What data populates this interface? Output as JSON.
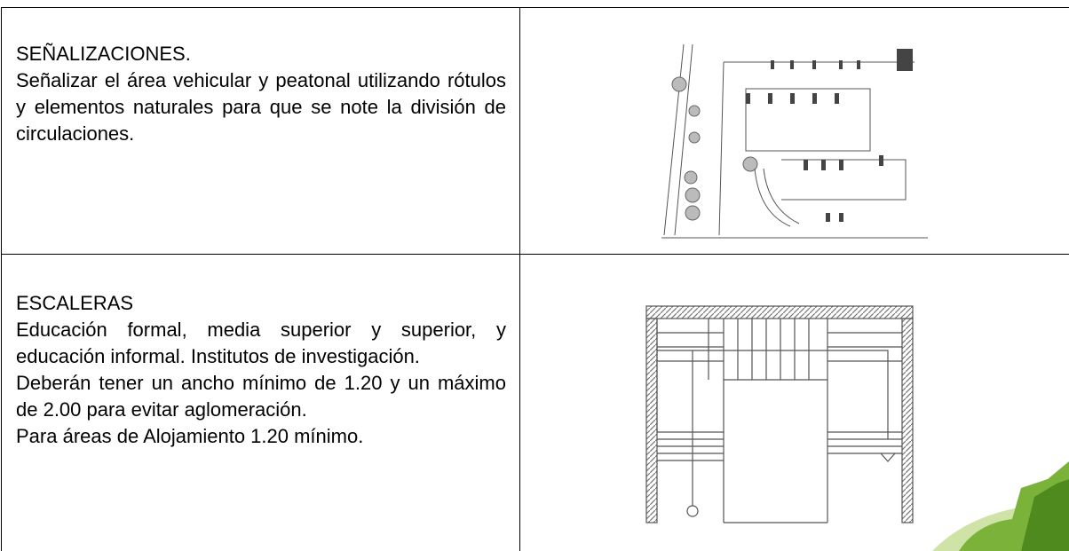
{
  "rows": [
    {
      "title": "SEÑALIZACIONES.",
      "paragraphs": [
        "Señalizar el área vehicular y peatonal utilizando rótulos y elementos naturales para que se note la división de circulaciones."
      ]
    },
    {
      "title": "ESCALERAS",
      "paragraphs": [
        "Educación formal, media superior y superior, y educación informal. Institutos de investigación.",
        "Deberán tener un ancho mínimo de 1.20 y un máximo de 2.00 para evitar aglomeración.",
        "Para áreas de Alojamiento 1.20 mínimo."
      ]
    }
  ]
}
